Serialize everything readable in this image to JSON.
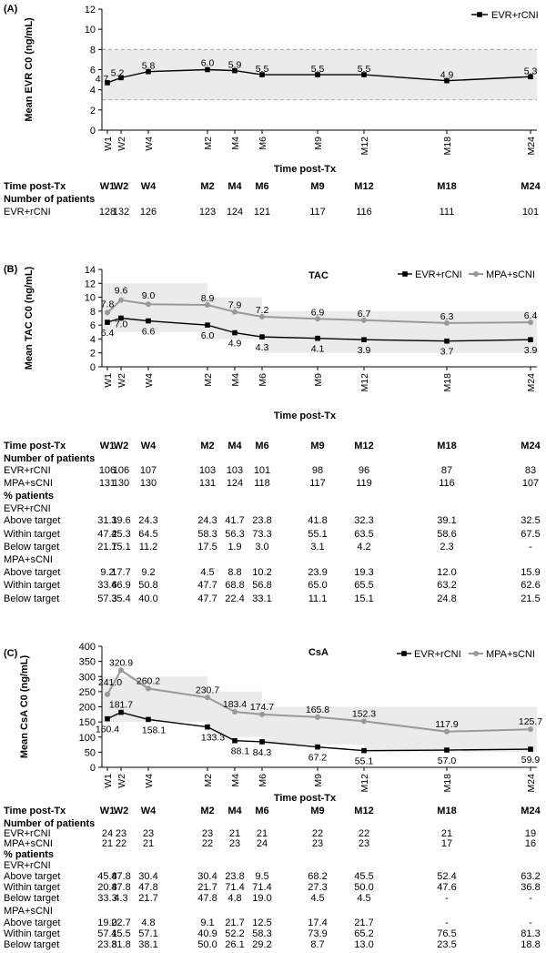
{
  "x_ticks": [
    "W1",
    "W2",
    "W4",
    "M2",
    "M4",
    "M6",
    "M9",
    "M12",
    "M18",
    "M24"
  ],
  "time_header": "Time post-Tx",
  "chart_data": [
    {
      "type": "line",
      "panel": "(A)",
      "title": "",
      "xlabel": "Time post-Tx",
      "ylabel": "Mean EVR C0 (ng/mL)",
      "ylim": [
        0,
        12
      ],
      "yticks": [
        "0",
        "2",
        "4",
        "6",
        "8",
        "10",
        "12"
      ],
      "target_range": [
        3,
        8
      ],
      "categories": [
        "W1",
        "W2",
        "W4",
        "M2",
        "M4",
        "M6",
        "M9",
        "M12",
        "M18",
        "M24"
      ],
      "series": [
        {
          "name": "EVR+rCNI",
          "color": "#000000",
          "marker": "square",
          "values": [
            4.7,
            5.2,
            5.8,
            6.0,
            5.9,
            5.5,
            5.5,
            5.5,
            4.9,
            5.3
          ],
          "labels": [
            "4.7",
            "5.2",
            "5.8",
            "6.0",
            "5.9",
            "5.5",
            "5.5",
            "5.5",
            "4.9",
            "5.3"
          ]
        }
      ],
      "legend": "top-right"
    },
    {
      "type": "line",
      "panel": "(B)",
      "title": "TAC",
      "xlabel": "Time post-Tx",
      "ylabel": "Mean TAC C0 (ng/mL)",
      "ylim": [
        0,
        14
      ],
      "yticks": [
        "0",
        "2",
        "4",
        "6",
        "8",
        "10",
        "12",
        "14"
      ],
      "target_bands": [
        {
          "from": "W1",
          "to": "M2",
          "low": 5,
          "high": 12
        },
        {
          "from": "M2",
          "to": "M6",
          "low": 4,
          "high": 10
        },
        {
          "from": "M6",
          "to": "M24",
          "low": 2,
          "high": 8
        }
      ],
      "categories": [
        "W1",
        "W2",
        "W4",
        "M2",
        "M4",
        "M6",
        "M9",
        "M12",
        "M18",
        "M24"
      ],
      "series": [
        {
          "name": "EVR+rCNI",
          "color": "#000000",
          "marker": "square",
          "values": [
            6.4,
            7.0,
            6.6,
            6.0,
            4.9,
            4.3,
            4.1,
            3.9,
            3.7,
            3.9
          ],
          "labels": [
            "6.4",
            "7.0",
            "6.6",
            "6.0",
            "4.9",
            "4.3",
            "4.1",
            "3.9",
            "3.7",
            "3.9"
          ]
        },
        {
          "name": "MPA+sCNI",
          "color": "#999999",
          "marker": "circle",
          "values": [
            7.8,
            9.6,
            9.0,
            8.9,
            7.9,
            7.2,
            6.9,
            6.7,
            6.3,
            6.4
          ],
          "labels": [
            "7.8",
            "9.6",
            "9.0",
            "8.9",
            "7.9",
            "7.2",
            "6.9",
            "6.7",
            "6.3",
            "6.4"
          ]
        }
      ],
      "legend": "top-right"
    },
    {
      "type": "line",
      "panel": "(C)",
      "title": "CsA",
      "xlabel": "Time post-Tx",
      "ylabel": "Mean CsA C0 (ng/mL)",
      "ylim": [
        0,
        400
      ],
      "yticks": [
        "0",
        "50",
        "100",
        "150",
        "200",
        "250",
        "300",
        "350",
        "400"
      ],
      "target_bands": [
        {
          "from": "W1",
          "to": "M2",
          "low": 150,
          "high": 300
        },
        {
          "from": "M2",
          "to": "M6",
          "low": 100,
          "high": 250
        },
        {
          "from": "M6",
          "to": "M12",
          "low": 75,
          "high": 200
        },
        {
          "from": "M12",
          "to": "M24",
          "low": 50,
          "high": 200
        }
      ],
      "categories": [
        "W1",
        "W2",
        "W4",
        "M2",
        "M4",
        "M6",
        "M9",
        "M12",
        "M18",
        "M24"
      ],
      "series": [
        {
          "name": "EVR+rCNI",
          "color": "#000000",
          "marker": "square",
          "values": [
            160.4,
            181.7,
            158.1,
            133.3,
            88.1,
            84.3,
            67.2,
            55.1,
            57.0,
            59.9
          ],
          "labels": [
            "160.4",
            "181.7",
            "158.1",
            "133.3",
            "88.1",
            "84.3",
            "67.2",
            "55.1",
            "57.0",
            "59.9"
          ]
        },
        {
          "name": "MPA+sCNI",
          "color": "#999999",
          "marker": "circle",
          "values": [
            241.0,
            320.9,
            260.2,
            230.7,
            183.4,
            174.7,
            165.8,
            152.3,
            117.9,
            125.7
          ],
          "labels": [
            "241.0",
            "320.9",
            "260.2",
            "230.7",
            "183.4",
            "174.7",
            "165.8",
            "152.3",
            "117.9",
            "125.7"
          ]
        }
      ],
      "legend": "top-right"
    }
  ],
  "tables": [
    {
      "id": "A",
      "rows": [
        {
          "label": "Number of patients",
          "bold": true,
          "values": null
        },
        {
          "label": "EVR+rCNI",
          "values": [
            "128",
            "132",
            "126",
            "123",
            "124",
            "121",
            "117",
            "116",
            "111",
            "101"
          ]
        }
      ]
    },
    {
      "id": "B",
      "rows": [
        {
          "label": "Number of patients",
          "bold": true,
          "values": null
        },
        {
          "label": "EVR+rCNI",
          "values": [
            "106",
            "106",
            "107",
            "103",
            "103",
            "101",
            "98",
            "96",
            "87",
            "83"
          ]
        },
        {
          "label": "MPA+sCNI",
          "values": [
            "131",
            "130",
            "130",
            "131",
            "124",
            "118",
            "117",
            "119",
            "116",
            "107"
          ]
        },
        {
          "label": "% patients",
          "bold": true,
          "values": null
        },
        {
          "label": "EVR+rCNI",
          "values": null
        },
        {
          "label": "Above target",
          "values": [
            "31.1",
            "39.6",
            "24.3",
            "24.3",
            "41.7",
            "23.8",
            "41.8",
            "32.3",
            "39.1",
            "32.5"
          ]
        },
        {
          "label": "Within target",
          "values": [
            "47.2",
            "45.3",
            "64.5",
            "58.3",
            "56.3",
            "73.3",
            "55.1",
            "63.5",
            "58.6",
            "67.5"
          ]
        },
        {
          "label": "Below target",
          "values": [
            "21.7",
            "15.1",
            "11.2",
            "17.5",
            "1.9",
            "3.0",
            "3.1",
            "4.2",
            "2.3",
            "-"
          ]
        },
        {
          "label": "MPA+sCNI",
          "values": null
        },
        {
          "label": "Above target",
          "values": [
            "9.2",
            "17.7",
            "9.2",
            "4.5",
            "8.8",
            "10.2",
            "23.9",
            "19.3",
            "12.0",
            "15.9"
          ]
        },
        {
          "label": "Within target",
          "values": [
            "33.6",
            "46.9",
            "50.8",
            "47.7",
            "68.8",
            "56.8",
            "65.0",
            "65.5",
            "63.2",
            "62.6"
          ]
        },
        {
          "label": "Below target",
          "values": [
            "57.3",
            "35.4",
            "40.0",
            "47.7",
            "22.4",
            "33.1",
            "11.1",
            "15.1",
            "24.8",
            "21.5"
          ]
        }
      ]
    },
    {
      "id": "C",
      "rows": [
        {
          "label": "Number of patients",
          "bold": true,
          "values": null
        },
        {
          "label": "EVR+rCNI",
          "values": [
            "24",
            "23",
            "23",
            "23",
            "21",
            "21",
            "22",
            "22",
            "21",
            "19"
          ]
        },
        {
          "label": "MPA+sCNI",
          "values": [
            "21",
            "22",
            "21",
            "22",
            "23",
            "24",
            "23",
            "23",
            "17",
            "16"
          ]
        },
        {
          "label": "% patients",
          "bold": true,
          "values": null
        },
        {
          "label": "EVR+rCNI",
          "values": null
        },
        {
          "label": "Above target",
          "values": [
            "45.8",
            "47.8",
            "30.4",
            "30.4",
            "23.8",
            "9.5",
            "68.2",
            "45.5",
            "52.4",
            "63.2"
          ]
        },
        {
          "label": "Within target",
          "values": [
            "20.8",
            "47.8",
            "47.8",
            "21.7",
            "71.4",
            "71.4",
            "27.3",
            "50.0",
            "47.6",
            "36.8"
          ]
        },
        {
          "label": "Below target",
          "values": [
            "33.3",
            "4.3",
            "21.7",
            "47.8",
            "4.8",
            "19.0",
            "4.5",
            "4.5",
            "-",
            "-"
          ]
        },
        {
          "label": "MPA+sCNI",
          "values": null
        },
        {
          "label": "Above target",
          "values": [
            "19.0",
            "22.7",
            "4.8",
            "9.1",
            "21.7",
            "12.5",
            "17.4",
            "21.7",
            "-",
            "-"
          ]
        },
        {
          "label": "Within target",
          "values": [
            "57.1",
            "45.5",
            "57.1",
            "40.9",
            "52.2",
            "58.3",
            "73.9",
            "65.2",
            "76.5",
            "81.3"
          ]
        },
        {
          "label": "Below target",
          "values": [
            "23.8",
            "31.8",
            "38.1",
            "50.0",
            "26.1",
            "29.2",
            "8.7",
            "13.0",
            "23.5",
            "18.8"
          ]
        }
      ]
    }
  ]
}
